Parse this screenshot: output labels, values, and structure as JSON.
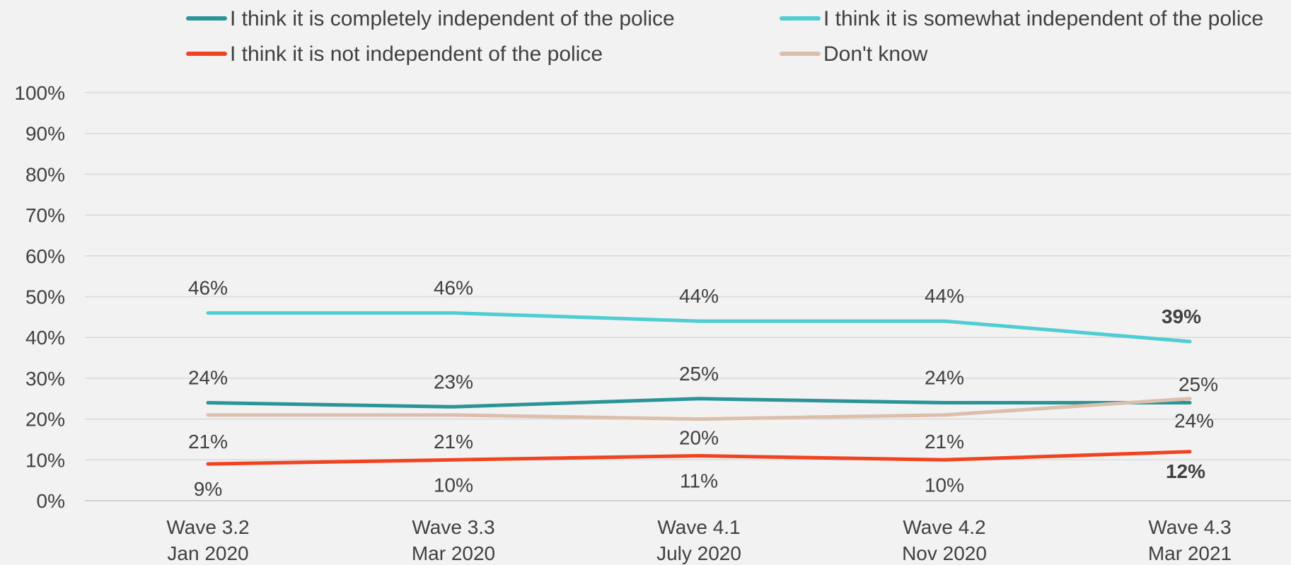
{
  "chart_data": {
    "type": "line",
    "title": "",
    "xlabel": "",
    "ylabel": "",
    "ylim": [
      0,
      100
    ],
    "y_ticks": [
      "0%",
      "10%",
      "20%",
      "30%",
      "40%",
      "50%",
      "60%",
      "70%",
      "80%",
      "90%",
      "100%"
    ],
    "grid": true,
    "legend_position": "top",
    "categories": [
      [
        "Wave 3.2",
        "Jan 2020"
      ],
      [
        "Wave 3.3",
        "Mar 2020"
      ],
      [
        "Wave 4.1",
        "July 2020"
      ],
      [
        "Wave 4.2",
        "Nov 2020"
      ],
      [
        "Wave 4.3",
        "Mar 2021"
      ]
    ],
    "series": [
      {
        "name": "I think it is completely independent of the police",
        "color": "#2a9497",
        "values": [
          24,
          23,
          25,
          24,
          24
        ],
        "labels": [
          "24%",
          "23%",
          "25%",
          "24%",
          "24%"
        ]
      },
      {
        "name": "I think it is somewhat independent of the police",
        "color": "#4ecdd3",
        "values": [
          46,
          46,
          44,
          44,
          39
        ],
        "labels": [
          "46%",
          "46%",
          "44%",
          "44%",
          "39%"
        ]
      },
      {
        "name": "I think it is not independent of the police",
        "color": "#f04420",
        "values": [
          9,
          10,
          11,
          10,
          12
        ],
        "labels": [
          "9%",
          "10%",
          "11%",
          "10%",
          "12%"
        ]
      },
      {
        "name": "Don't know",
        "color": "#dbbfac",
        "values": [
          21,
          21,
          20,
          21,
          25
        ],
        "labels": [
          "21%",
          "21%",
          "20%",
          "21%",
          "25%"
        ]
      }
    ]
  }
}
